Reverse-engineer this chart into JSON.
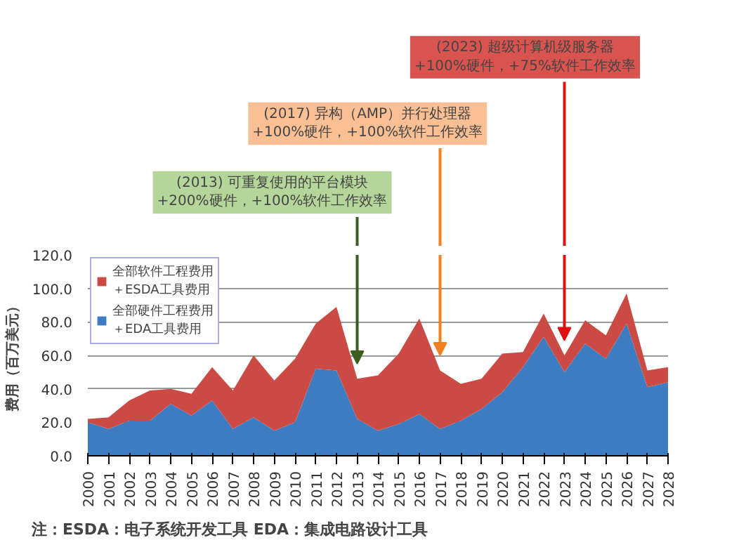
{
  "chart_data": {
    "type": "area",
    "stacked": true,
    "x": [
      2000,
      2001,
      2002,
      2003,
      2004,
      2005,
      2006,
      2007,
      2008,
      2009,
      2010,
      2011,
      2012,
      2013,
      2014,
      2015,
      2016,
      2017,
      2018,
      2019,
      2020,
      2021,
      2022,
      2023,
      2024,
      2025,
      2026,
      2027,
      2028
    ],
    "series": [
      {
        "name": "全部硬件工程费用＋EDA工具费用",
        "color": "#3d7cc0",
        "values": [
          20,
          16,
          21,
          21,
          31,
          24,
          33,
          16,
          23,
          15,
          20,
          52,
          51,
          22,
          15,
          19,
          25,
          16,
          21,
          28,
          38,
          53,
          71,
          50,
          67,
          58,
          79,
          41,
          44
        ]
      },
      {
        "name": "全部软件工程费用＋ESDA工具费用",
        "color": "#cc4a44",
        "values": [
          2,
          7,
          12,
          18,
          9,
          13,
          20,
          23,
          37,
          30,
          38,
          27,
          38,
          24,
          33,
          42,
          57,
          35,
          22,
          18,
          23,
          9,
          14,
          10,
          14,
          14,
          18,
          10,
          9
        ]
      }
    ],
    "ylabel": "费用（百万美元）",
    "xlim": [
      2000,
      2028
    ],
    "xticks": [
      2000,
      2001,
      2002,
      2003,
      2004,
      2005,
      2006,
      2007,
      2008,
      2009,
      2010,
      2011,
      2012,
      2013,
      2014,
      2015,
      2016,
      2017,
      2018,
      2019,
      2020,
      2021,
      2022,
      2023,
      2024,
      2025,
      2026,
      2027,
      2028
    ],
    "ylim": [
      0,
      120
    ],
    "yticks": [
      {
        "value": 0,
        "label": "0.0"
      },
      {
        "value": 20,
        "label": "20.0"
      },
      {
        "value": 40,
        "label": "40.0"
      },
      {
        "value": 60,
        "label": "60.0"
      },
      {
        "value": 80,
        "label": "80.0"
      },
      {
        "value": 100,
        "label": "100.0"
      },
      {
        "value": 120,
        "label": "120.0"
      }
    ],
    "grid": "y",
    "legend": "top left",
    "annotations": [
      "(2013) 可重复使用的平台模块+200%硬件，+100%软件工作效率",
      "(2017) 异构（AMP）并行处理器+100%硬件，+100%软件工作效率",
      "(2023) 超级计算机级服务器+100%硬件，+75%软件工作效率",
      "注：ESDA：电子系统开发工具     EDA：集成电路设计工具"
    ]
  }
}
